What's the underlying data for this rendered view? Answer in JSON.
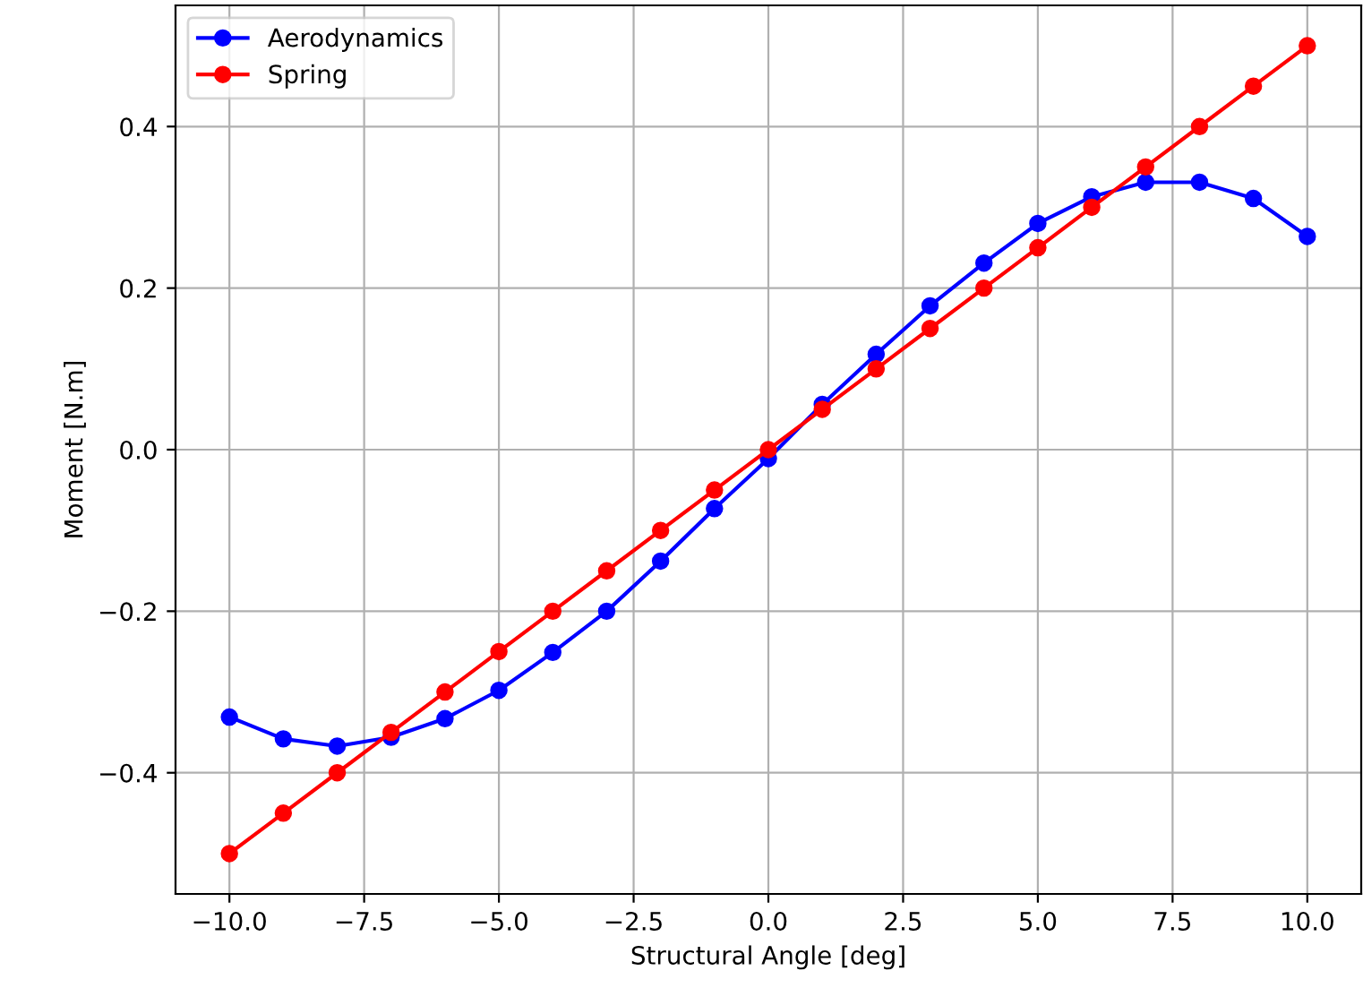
{
  "chart_data": {
    "type": "line",
    "xlabel": "Structural Angle [deg]",
    "ylabel": "Moment [N.m]",
    "x": [
      -10,
      -9,
      -8,
      -7,
      -6,
      -5,
      -4,
      -3,
      -2,
      -1,
      0,
      1,
      2,
      3,
      4,
      5,
      6,
      7,
      8,
      9,
      10
    ],
    "series": [
      {
        "name": "Aerodynamics",
        "color": "#0000ff",
        "values": [
          -0.331,
          -0.358,
          -0.367,
          -0.356,
          -0.333,
          -0.298,
          -0.251,
          -0.2,
          -0.138,
          -0.073,
          -0.011,
          0.056,
          0.118,
          0.178,
          0.231,
          0.28,
          0.313,
          0.331,
          0.331,
          0.311,
          0.264
        ]
      },
      {
        "name": "Spring",
        "color": "#ff0000",
        "values": [
          -0.5,
          -0.45,
          -0.4,
          -0.35,
          -0.3,
          -0.25,
          -0.2,
          -0.15,
          -0.1,
          -0.05,
          0.0,
          0.05,
          0.1,
          0.15,
          0.2,
          0.25,
          0.3,
          0.35,
          0.4,
          0.45,
          0.5
        ]
      }
    ],
    "xlim": [
      -11,
      11
    ],
    "ylim": [
      -0.55,
      0.55
    ],
    "xticks": [
      {
        "value": -10,
        "label": "−10.0"
      },
      {
        "value": -7.5,
        "label": "−7.5"
      },
      {
        "value": -5,
        "label": "−5.0"
      },
      {
        "value": -2.5,
        "label": "−2.5"
      },
      {
        "value": 0,
        "label": "0.0"
      },
      {
        "value": 2.5,
        "label": "2.5"
      },
      {
        "value": 5,
        "label": "5.0"
      },
      {
        "value": 7.5,
        "label": "7.5"
      },
      {
        "value": 10,
        "label": "10.0"
      }
    ],
    "yticks": [
      {
        "value": -0.4,
        "label": "−0.4"
      },
      {
        "value": -0.2,
        "label": "−0.2"
      },
      {
        "value": 0,
        "label": "0.0"
      },
      {
        "value": 0.2,
        "label": "0.2"
      },
      {
        "value": 0.4,
        "label": "0.4"
      }
    ],
    "grid": true,
    "legend": "top left",
    "marker": "circle",
    "line_style": "solid"
  }
}
